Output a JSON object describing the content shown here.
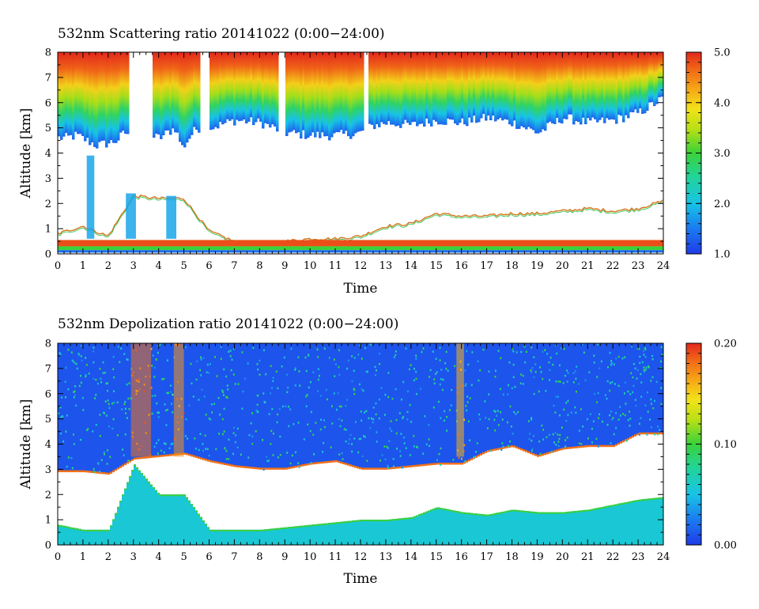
{
  "chart_data": [
    {
      "type": "heatmap",
      "title": "532nm Scattering ratio  20141022 (0:00−24:00)",
      "xlabel": "Time",
      "ylabel": "Altitude [km]",
      "xlim": [
        0,
        24
      ],
      "ylim": [
        0,
        8
      ],
      "x_ticks": [
        "0",
        "1",
        "2",
        "3",
        "4",
        "5",
        "6",
        "7",
        "8",
        "9",
        "10",
        "11",
        "12",
        "13",
        "14",
        "15",
        "16",
        "17",
        "18",
        "19",
        "20",
        "21",
        "22",
        "23",
        "24"
      ],
      "y_ticks": [
        "0",
        "1",
        "2",
        "3",
        "4",
        "5",
        "6",
        "7",
        "8"
      ],
      "colorbar": {
        "min": 1.0,
        "max": 5.0,
        "tick_labels": [
          "1.0",
          "2.0",
          "3.0",
          "4.0",
          "5.0"
        ],
        "colormap": "rainbow"
      },
      "cloud_base_km": [
        [
          0,
          4.6
        ],
        [
          0.3,
          4.6
        ],
        [
          0.7,
          4.7
        ],
        [
          1.1,
          4.5
        ],
        [
          1.5,
          4.3
        ],
        [
          2.0,
          4.4
        ],
        [
          2.3,
          4.5
        ],
        [
          2.6,
          4.8
        ],
        [
          4.0,
          4.6
        ],
        [
          4.6,
          5.0
        ],
        [
          4.9,
          4.2
        ],
        [
          5.3,
          4.8
        ],
        [
          5.5,
          5.0
        ],
        [
          6.0,
          5.0
        ],
        [
          7.0,
          5.3
        ],
        [
          8.0,
          5.2
        ],
        [
          9.0,
          4.8
        ],
        [
          10.0,
          4.7
        ],
        [
          11.0,
          4.7
        ],
        [
          12.0,
          4.8
        ],
        [
          12.5,
          5.1
        ],
        [
          13.0,
          5.2
        ],
        [
          14.0,
          5.1
        ],
        [
          15.0,
          5.3
        ],
        [
          16.0,
          5.2
        ],
        [
          17.0,
          5.4
        ],
        [
          18.0,
          5.2
        ],
        [
          19.0,
          4.8
        ],
        [
          20.0,
          5.4
        ],
        [
          21.0,
          5.2
        ],
        [
          22.0,
          5.3
        ],
        [
          23.0,
          5.6
        ],
        [
          24.0,
          6.2
        ]
      ],
      "cloud_top_km": 8.0,
      "boundary_layer_top_km": [
        [
          0,
          0.8
        ],
        [
          1.0,
          1.1
        ],
        [
          2.0,
          0.7
        ],
        [
          3.0,
          2.3
        ],
        [
          4.0,
          2.2
        ],
        [
          5.0,
          2.2
        ],
        [
          6.0,
          0.9
        ],
        [
          7.0,
          0.5
        ],
        [
          8.0,
          0.4
        ],
        [
          9.0,
          0.5
        ],
        [
          10.0,
          0.6
        ],
        [
          11.0,
          0.6
        ],
        [
          12.0,
          0.7
        ],
        [
          13.0,
          1.1
        ],
        [
          14.0,
          1.2
        ],
        [
          15.0,
          1.6
        ],
        [
          16.0,
          1.5
        ],
        [
          17.0,
          1.5
        ],
        [
          18.0,
          1.6
        ],
        [
          19.0,
          1.6
        ],
        [
          20.0,
          1.7
        ],
        [
          21.0,
          1.8
        ],
        [
          22.0,
          1.7
        ],
        [
          23.0,
          1.8
        ],
        [
          24.0,
          2.1
        ]
      ]
    },
    {
      "type": "heatmap",
      "title": "532nm Depolization ratio  20141022 (0:00−24:00)",
      "xlabel": "Time",
      "ylabel": "Altitude [km]",
      "xlim": [
        0,
        24
      ],
      "ylim": [
        0,
        8
      ],
      "x_ticks": [
        "0",
        "1",
        "2",
        "3",
        "4",
        "5",
        "6",
        "7",
        "8",
        "9",
        "10",
        "11",
        "12",
        "13",
        "14",
        "15",
        "16",
        "17",
        "18",
        "19",
        "20",
        "21",
        "22",
        "23",
        "24"
      ],
      "y_ticks": [
        "0",
        "1",
        "2",
        "3",
        "4",
        "5",
        "6",
        "7",
        "8"
      ],
      "colorbar": {
        "min": 0.0,
        "max": 0.2,
        "tick_labels": [
          "0.00",
          "0.10",
          "0.20"
        ],
        "colormap": "rainbow"
      },
      "cloud_lower_edge_km": [
        [
          0,
          2.9
        ],
        [
          1.0,
          2.9
        ],
        [
          2.0,
          2.8
        ],
        [
          3.0,
          3.4
        ],
        [
          4.0,
          3.5
        ],
        [
          5.0,
          3.6
        ],
        [
          6.0,
          3.3
        ],
        [
          7.0,
          3.1
        ],
        [
          8.0,
          3.0
        ],
        [
          9.0,
          3.0
        ],
        [
          10.0,
          3.2
        ],
        [
          11.0,
          3.3
        ],
        [
          12.0,
          3.0
        ],
        [
          13.0,
          3.0
        ],
        [
          14.0,
          3.1
        ],
        [
          15.0,
          3.2
        ],
        [
          16.0,
          3.2
        ],
        [
          17.0,
          3.7
        ],
        [
          18.0,
          3.9
        ],
        [
          19.0,
          3.5
        ],
        [
          20.0,
          3.8
        ],
        [
          21.0,
          3.9
        ],
        [
          22.0,
          3.9
        ],
        [
          23.0,
          4.4
        ],
        [
          24.0,
          4.4
        ]
      ],
      "aerosol_top_km": [
        [
          0,
          0.8
        ],
        [
          1.0,
          0.6
        ],
        [
          2.0,
          0.6
        ],
        [
          3.0,
          3.2
        ],
        [
          4.0,
          2.0
        ],
        [
          5.0,
          2.0
        ],
        [
          6.0,
          0.6
        ],
        [
          7.0,
          0.6
        ],
        [
          8.0,
          0.6
        ],
        [
          9.0,
          0.7
        ],
        [
          10.0,
          0.8
        ],
        [
          11.0,
          0.9
        ],
        [
          12.0,
          1.0
        ],
        [
          13.0,
          1.0
        ],
        [
          14.0,
          1.1
        ],
        [
          15.0,
          1.5
        ],
        [
          16.0,
          1.3
        ],
        [
          17.0,
          1.2
        ],
        [
          18.0,
          1.4
        ],
        [
          19.0,
          1.3
        ],
        [
          20.0,
          1.3
        ],
        [
          21.0,
          1.4
        ],
        [
          22.0,
          1.6
        ],
        [
          23.0,
          1.8
        ],
        [
          24.0,
          1.9
        ]
      ]
    }
  ]
}
